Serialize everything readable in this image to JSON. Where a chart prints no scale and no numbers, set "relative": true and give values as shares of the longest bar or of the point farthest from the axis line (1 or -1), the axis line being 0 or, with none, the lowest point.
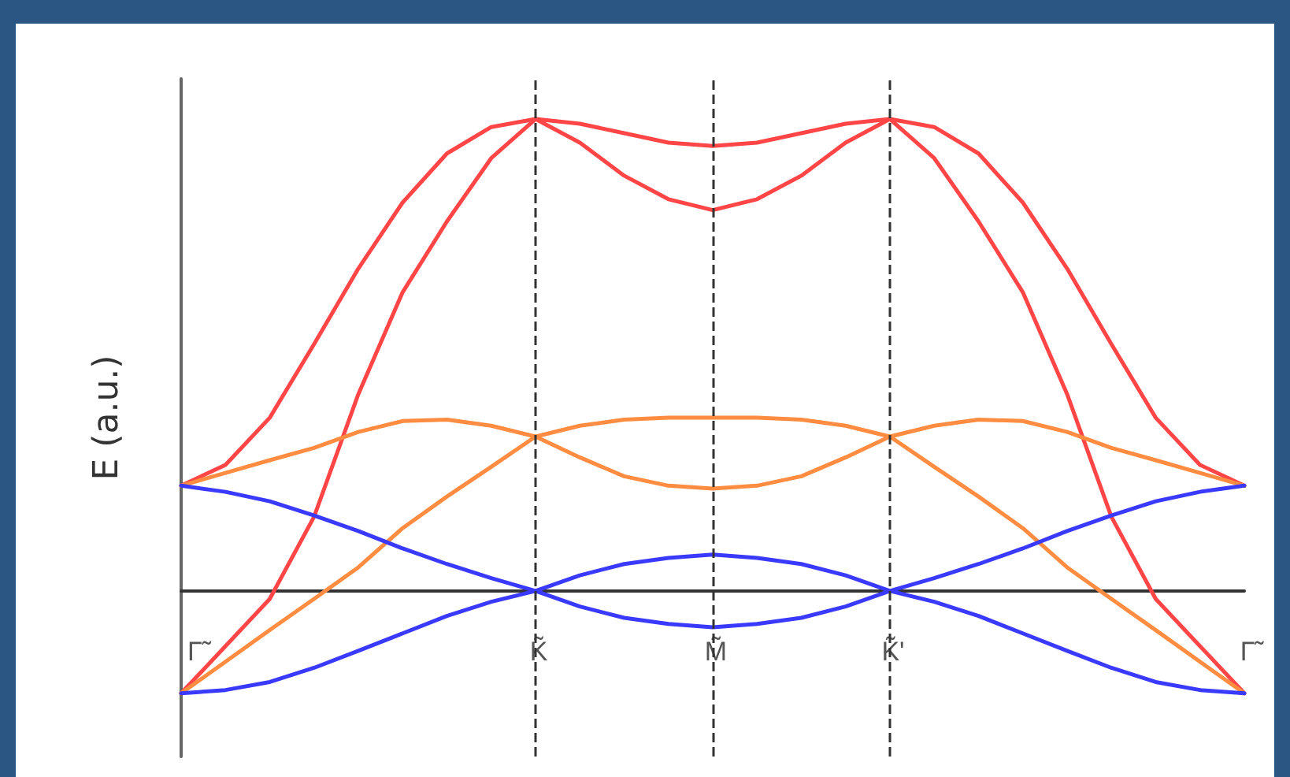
{
  "chart_data": {
    "type": "line",
    "relative": true,
    "ylabel": "E (a.u.)",
    "categories": [
      "Γ̃",
      null,
      null,
      null,
      null,
      null,
      null,
      null,
      "K̃",
      null,
      null,
      null,
      "M̃",
      null,
      null,
      null,
      "K̃'",
      null,
      null,
      null,
      null,
      null,
      null,
      null,
      "Γ̃"
    ],
    "series": [
      {
        "color": "#ff4545",
        "values": [
          0.223,
          0.267,
          0.367,
          0.523,
          0.683,
          0.823,
          0.927,
          0.983,
          1.0,
          0.99,
          0.97,
          0.95,
          0.943,
          0.95,
          0.97,
          0.99,
          1.0,
          0.983,
          0.927,
          0.823,
          0.683,
          0.523,
          0.367,
          0.267,
          0.223
        ]
      },
      {
        "color": "#ff4545",
        "values": [
          -0.217,
          -0.117,
          -0.017,
          0.157,
          0.417,
          0.633,
          0.783,
          0.917,
          1.0,
          0.95,
          0.88,
          0.83,
          0.807,
          0.83,
          0.88,
          0.95,
          1.0,
          0.917,
          0.783,
          0.633,
          0.417,
          0.157,
          -0.017,
          -0.117,
          -0.217
        ]
      },
      {
        "color": "#ff8c40",
        "values": [
          0.223,
          0.25,
          0.277,
          0.303,
          0.337,
          0.36,
          0.363,
          0.35,
          0.327,
          0.283,
          0.243,
          0.223,
          0.217,
          0.223,
          0.243,
          0.283,
          0.327,
          0.35,
          0.363,
          0.36,
          0.337,
          0.303,
          0.277,
          0.25,
          0.223
        ]
      },
      {
        "color": "#ff8c40",
        "values": [
          -0.217,
          -0.15,
          -0.083,
          -0.017,
          0.05,
          0.133,
          0.2,
          0.263,
          0.327,
          0.35,
          0.363,
          0.367,
          0.367,
          0.367,
          0.363,
          0.35,
          0.327,
          0.263,
          0.2,
          0.133,
          0.05,
          -0.017,
          -0.083,
          -0.15,
          -0.217
        ]
      },
      {
        "color": "#3a3aff",
        "values": [
          0.223,
          0.21,
          0.19,
          0.16,
          0.127,
          0.09,
          0.057,
          0.027,
          0,
          -0.033,
          -0.057,
          -0.07,
          -0.077,
          -0.07,
          -0.057,
          -0.033,
          0,
          0.027,
          0.057,
          0.09,
          0.127,
          0.16,
          0.19,
          0.21,
          0.223
        ]
      },
      {
        "color": "#3a3aff",
        "values": [
          -0.217,
          -0.21,
          -0.193,
          -0.163,
          -0.127,
          -0.09,
          -0.053,
          -0.023,
          0,
          0.033,
          0.057,
          0.07,
          0.077,
          0.07,
          0.057,
          0.033,
          0,
          -0.023,
          -0.053,
          -0.09,
          -0.127,
          -0.163,
          -0.193,
          -0.21,
          -0.217
        ]
      }
    ],
    "ref_lines": [
      {
        "axis": "x",
        "value": "K̃",
        "label": null,
        "line_style": "dashed"
      },
      {
        "axis": "x",
        "value": "M̃",
        "label": null,
        "line_style": "dashed"
      },
      {
        "axis": "x",
        "value": "K̃'",
        "label": null,
        "line_style": "dashed"
      }
    ],
    "marker": "none",
    "line_style": "solid",
    "grid": false
  }
}
